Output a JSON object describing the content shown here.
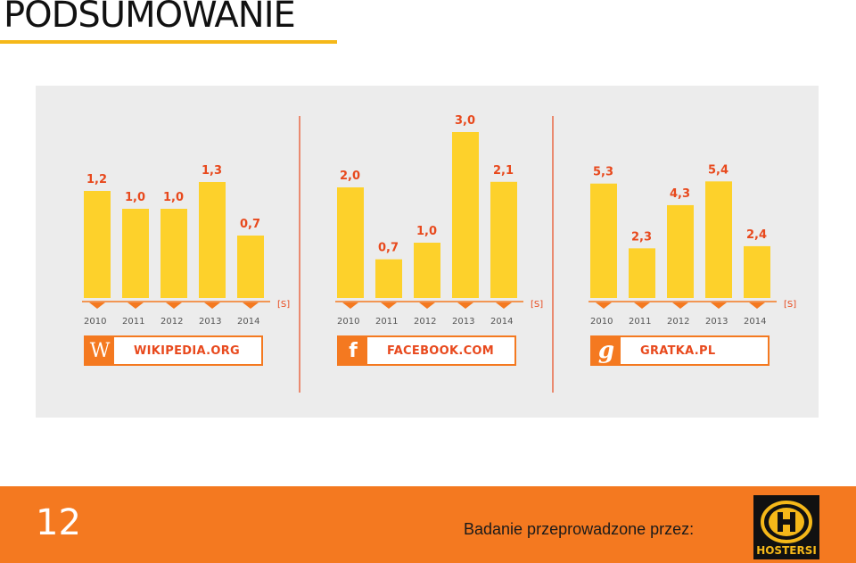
{
  "page": {
    "title": "PODSUMOWANIE",
    "page_number": "12",
    "footer_text": "Badanie przeprowadzone przez:",
    "brand_name": "HOSTERSI",
    "colors": {
      "accent_orange": "#f47920",
      "bar_yellow": "#fdd12b",
      "label_red": "#e8491d",
      "title_underline": "#f5b819",
      "panel_bg": "#ececec"
    }
  },
  "chart_data": [
    {
      "type": "bar",
      "categories": [
        "2010",
        "2011",
        "2012",
        "2013",
        "2014"
      ],
      "values": [
        1.2,
        1.0,
        1.0,
        1.3,
        0.7
      ],
      "value_labels": [
        "1,2",
        "1,0",
        "1,0",
        "1,3",
        "0,7"
      ],
      "unit_label": "[S]",
      "site_name": "WIKIPEDIA.ORG",
      "site_icon": "wikipedia-icon",
      "site_logo_text": "W"
    },
    {
      "type": "bar",
      "categories": [
        "2010",
        "2011",
        "2012",
        "2013",
        "2014"
      ],
      "values": [
        2.0,
        0.7,
        1.0,
        3.0,
        2.1
      ],
      "value_labels": [
        "2,0",
        "0,7",
        "1,0",
        "3,0",
        "2,1"
      ],
      "unit_label": "[S]",
      "site_name": "FACEBOOK.COM",
      "site_icon": "facebook-icon",
      "site_logo_text": "f"
    },
    {
      "type": "bar",
      "categories": [
        "2010",
        "2011",
        "2012",
        "2013",
        "2014"
      ],
      "values": [
        5.3,
        2.3,
        4.3,
        5.4,
        2.4
      ],
      "value_labels": [
        "5,3",
        "2,3",
        "4,3",
        "5,4",
        "2,4"
      ],
      "unit_label": "[S]",
      "site_name": "GRATKA.PL",
      "site_icon": "gratka-icon",
      "site_logo_text": "g"
    }
  ]
}
